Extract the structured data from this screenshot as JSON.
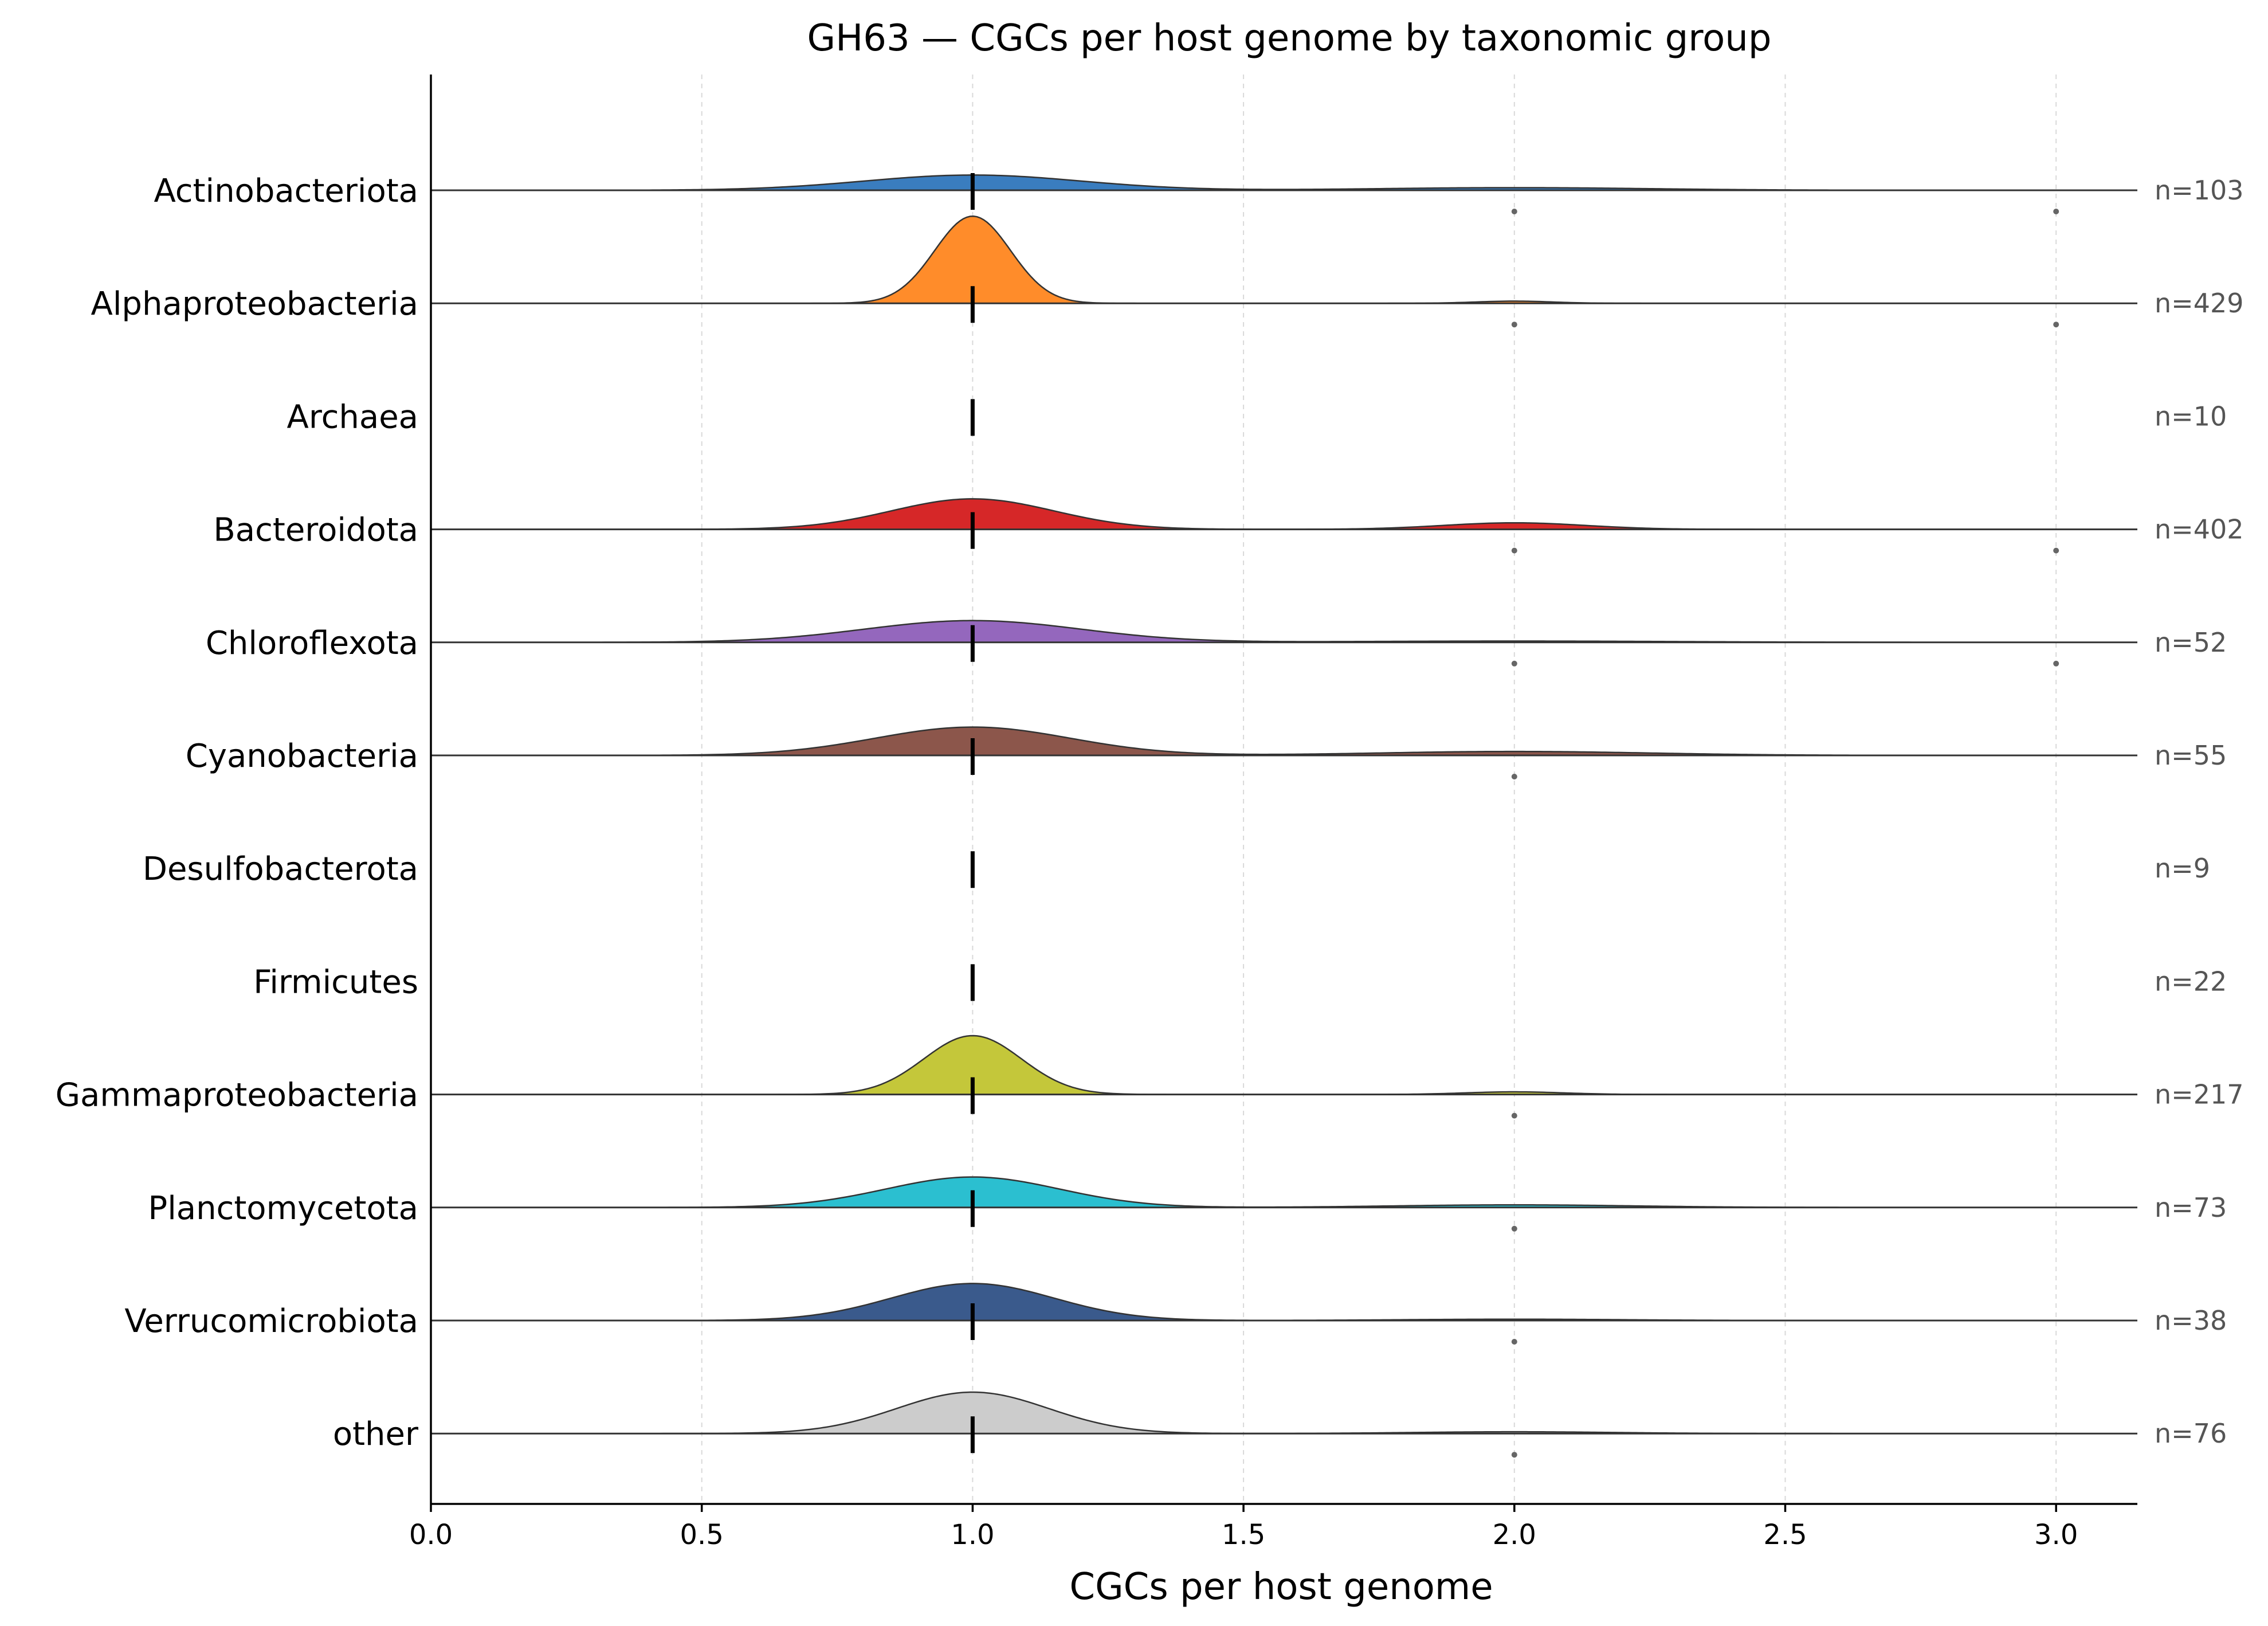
{
  "chart_data": {
    "type": "ridgeline",
    "title": "GH63 — CGCs per host genome by taxonomic group",
    "xlabel": "CGCs per host genome",
    "ylabel": "",
    "xlim": [
      0.0,
      3.15
    ],
    "xticks": [
      0.0,
      0.5,
      1.0,
      1.5,
      2.0,
      2.5,
      3.0
    ],
    "xtick_labels": [
      "0.0",
      "0.5",
      "1.0",
      "1.5",
      "2.0",
      "2.5",
      "3.0"
    ],
    "grid": "x-dashed",
    "groups": [
      {
        "name": "Actinobacteriota",
        "n_label": "n=103",
        "color": "#3a7dbf",
        "median": 1.0,
        "peak": 0.07,
        "bw": 0.2,
        "secondary": [
          {
            "x": 2.0,
            "h": 0.012,
            "bw": 0.25
          }
        ],
        "outliers": [
          2.0,
          3.0
        ]
      },
      {
        "name": "Alphaproteobacteria",
        "n_label": "n=429",
        "color": "#ff8c2a",
        "median": 1.0,
        "peak": 0.4,
        "bw": 0.07,
        "secondary": [
          {
            "x": 2.0,
            "h": 0.01,
            "bw": 0.07
          }
        ],
        "outliers": [
          2.0,
          3.0
        ]
      },
      {
        "name": "Archaea",
        "n_label": "n=10",
        "color": "#2ca02c",
        "median": 1.0,
        "peak": 0.0,
        "bw": 0.1,
        "secondary": [],
        "outliers": []
      },
      {
        "name": "Bacteroidota",
        "n_label": "n=402",
        "color": "#d62728",
        "median": 1.0,
        "peak": 0.14,
        "bw": 0.15,
        "secondary": [
          {
            "x": 2.0,
            "h": 0.03,
            "bw": 0.13
          }
        ],
        "outliers": [
          2.0,
          3.0
        ]
      },
      {
        "name": "Chloroflexota",
        "n_label": "n=52",
        "color": "#9467bd",
        "median": 1.0,
        "peak": 0.1,
        "bw": 0.2,
        "secondary": [
          {
            "x": 2.0,
            "h": 0.006,
            "bw": 0.3
          }
        ],
        "outliers": [
          2.0,
          3.0
        ]
      },
      {
        "name": "Cyanobacteria",
        "n_label": "n=55",
        "color": "#8c564b",
        "median": 1.0,
        "peak": 0.13,
        "bw": 0.18,
        "secondary": [
          {
            "x": 2.0,
            "h": 0.018,
            "bw": 0.25
          }
        ],
        "outliers": [
          2.0
        ]
      },
      {
        "name": "Desulfobacterota",
        "n_label": "n=9",
        "color": "#e377c2",
        "median": 1.0,
        "peak": 0.0,
        "bw": 0.1,
        "secondary": [],
        "outliers": []
      },
      {
        "name": "Firmicutes",
        "n_label": "n=22",
        "color": "#7f7f7f",
        "median": 1.0,
        "peak": 0.0,
        "bw": 0.1,
        "secondary": [],
        "outliers": []
      },
      {
        "name": "Gammaproteobacteria",
        "n_label": "n=217",
        "color": "#c4c73a",
        "median": 1.0,
        "peak": 0.27,
        "bw": 0.09,
        "secondary": [
          {
            "x": 2.0,
            "h": 0.012,
            "bw": 0.09
          }
        ],
        "outliers": [
          2.0
        ]
      },
      {
        "name": "Planctomycetota",
        "n_label": "n=73",
        "color": "#2bbfd0",
        "median": 1.0,
        "peak": 0.14,
        "bw": 0.16,
        "secondary": [
          {
            "x": 2.0,
            "h": 0.012,
            "bw": 0.22
          }
        ],
        "outliers": [
          2.0
        ]
      },
      {
        "name": "Verrucomicrobiota",
        "n_label": "n=38",
        "color": "#3a5a8c",
        "median": 1.0,
        "peak": 0.17,
        "bw": 0.15,
        "secondary": [
          {
            "x": 2.0,
            "h": 0.006,
            "bw": 0.2
          }
        ],
        "outliers": [
          2.0
        ]
      },
      {
        "name": "other",
        "n_label": "n=76",
        "color": "#cccccc",
        "median": 1.0,
        "peak": 0.19,
        "bw": 0.14,
        "secondary": [
          {
            "x": 2.0,
            "h": 0.008,
            "bw": 0.18
          }
        ],
        "outliers": [
          2.0
        ]
      }
    ]
  }
}
